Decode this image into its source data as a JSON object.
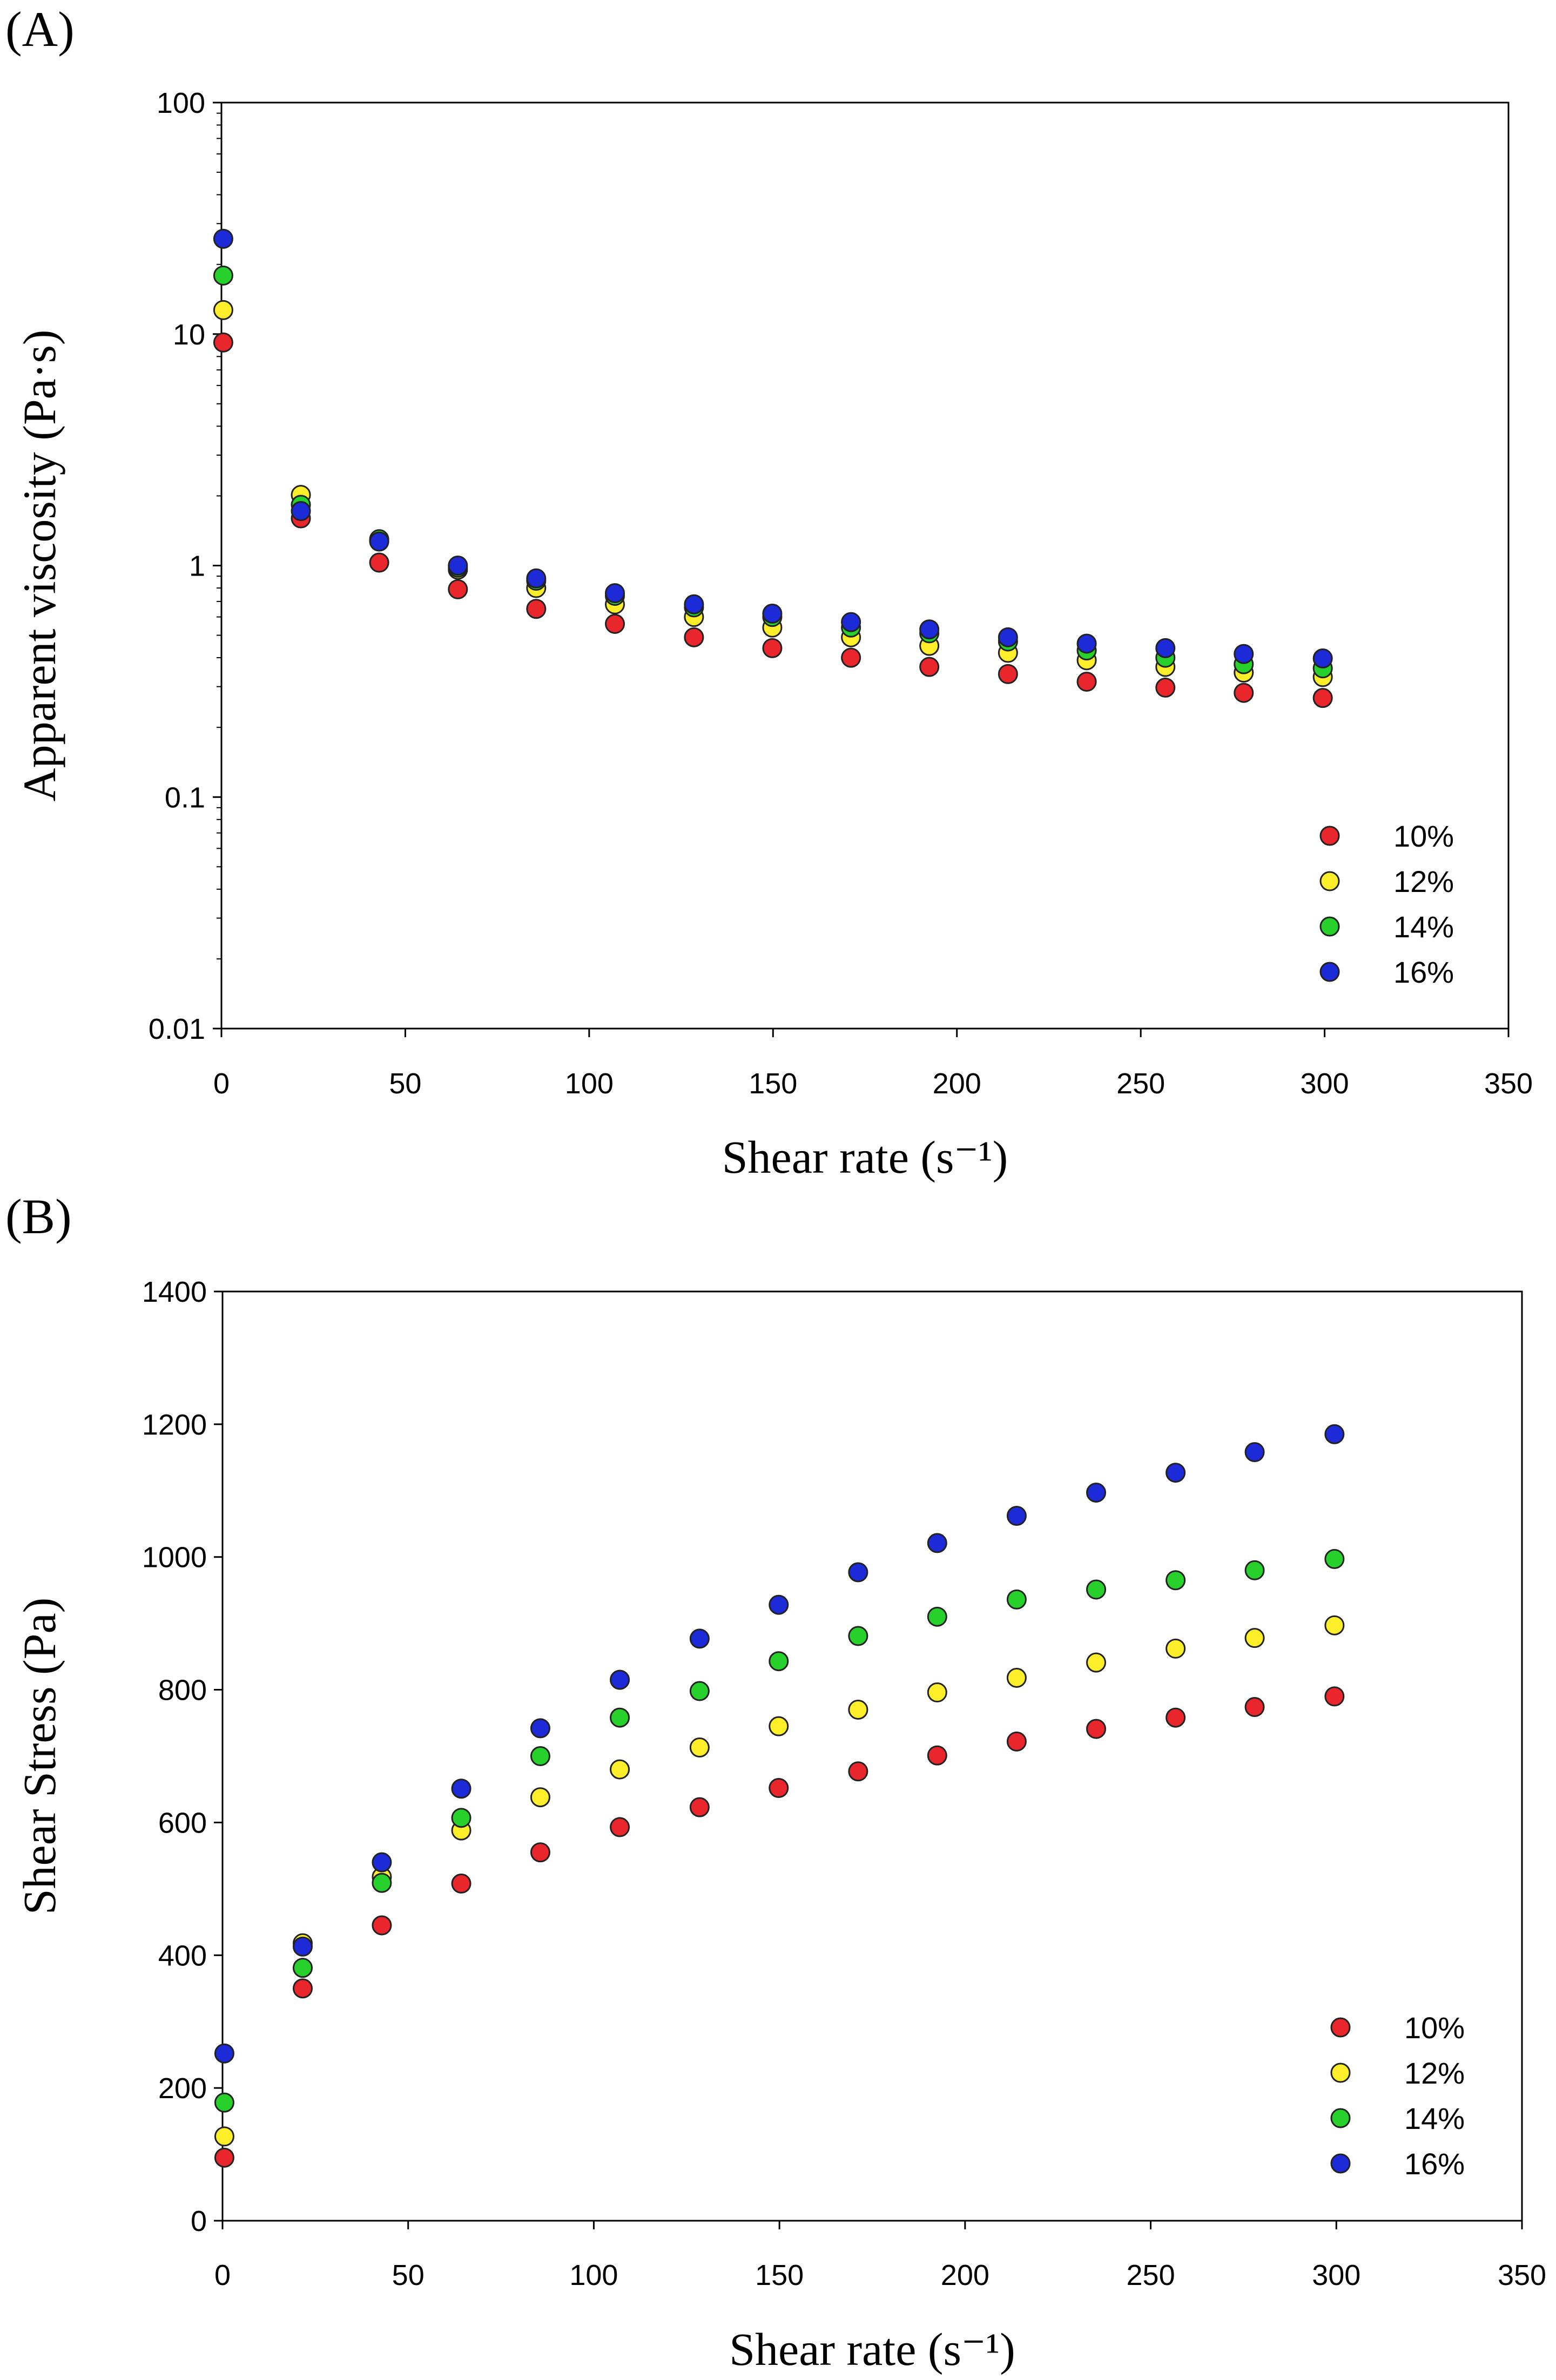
{
  "colors": {
    "10%": "#e8262b",
    "12%": "#ffee2a",
    "14%": "#27d02b",
    "16%": "#1c2ad8",
    "marker_outline": "#222222",
    "axis": "#000000",
    "background": "#ffffff"
  },
  "chart_data": [
    {
      "panel_label": "(A)",
      "type": "scatter",
      "title": "",
      "xlabel": "Shear rate (s⁻¹)",
      "ylabel": "Apparent viscosity (Pa·s)",
      "xscale": "linear",
      "yscale": "log",
      "xlim": [
        0,
        350
      ],
      "ylim": [
        0.01,
        100
      ],
      "xticks": [
        0,
        50,
        100,
        150,
        200,
        250,
        300,
        350
      ],
      "yticks": [
        0.01,
        0.1,
        1,
        10,
        100
      ],
      "xtick_labels": [
        "0",
        "50",
        "100",
        "150",
        "200",
        "250",
        "300",
        "350"
      ],
      "ytick_labels": [
        "0.01",
        "0.1",
        "1",
        "10",
        "100"
      ],
      "grid": false,
      "legend_position": "bottom-right",
      "x": [
        0.5,
        21.6,
        42.9,
        64.3,
        85.6,
        107,
        128.5,
        149.8,
        171.2,
        192.5,
        213.9,
        235.3,
        256.7,
        278,
        299.5
      ],
      "series": [
        {
          "name": "10%",
          "values": [
            9.2,
            1.6,
            1.03,
            0.79,
            0.65,
            0.56,
            0.49,
            0.44,
            0.4,
            0.365,
            0.34,
            0.315,
            0.297,
            0.282,
            0.268
          ]
        },
        {
          "name": "12%",
          "values": [
            12.7,
            2.02,
            1.28,
            0.96,
            0.8,
            0.68,
            0.6,
            0.54,
            0.49,
            0.45,
            0.42,
            0.39,
            0.365,
            0.345,
            0.33
          ]
        },
        {
          "name": "14%",
          "values": [
            17.9,
            1.83,
            1.3,
            0.98,
            0.86,
            0.74,
            0.66,
            0.6,
            0.54,
            0.51,
            0.47,
            0.43,
            0.4,
            0.375,
            0.36
          ]
        },
        {
          "name": "16%",
          "values": [
            25.8,
            1.72,
            1.27,
            1.0,
            0.88,
            0.76,
            0.68,
            0.62,
            0.57,
            0.53,
            0.49,
            0.46,
            0.44,
            0.415,
            0.397
          ]
        }
      ]
    },
    {
      "panel_label": "(B)",
      "type": "scatter",
      "title": "",
      "xlabel": "Shear rate (s⁻¹)",
      "ylabel": "Shear Stress (Pa)",
      "xscale": "linear",
      "yscale": "linear",
      "xlim": [
        0,
        350
      ],
      "ylim": [
        0,
        1400
      ],
      "xticks": [
        0,
        50,
        100,
        150,
        200,
        250,
        300,
        350
      ],
      "yticks": [
        0,
        200,
        400,
        600,
        800,
        1000,
        1200,
        1400
      ],
      "xtick_labels": [
        "0",
        "50",
        "100",
        "150",
        "200",
        "250",
        "300",
        "350"
      ],
      "ytick_labels": [
        "0",
        "200",
        "400",
        "600",
        "800",
        "1000",
        "1200",
        "1400"
      ],
      "grid": false,
      "legend_position": "bottom-right",
      "x": [
        0.5,
        21.6,
        42.9,
        64.3,
        85.6,
        107,
        128.5,
        149.8,
        171.2,
        192.5,
        213.9,
        235.3,
        256.7,
        278,
        299.5
      ],
      "series": [
        {
          "name": "10%",
          "values": [
            95,
            350,
            445,
            508,
            555,
            593,
            623,
            652,
            677,
            701,
            722,
            741,
            758,
            774,
            790
          ]
        },
        {
          "name": "12%",
          "values": [
            127,
            418,
            518,
            588,
            638,
            680,
            713,
            745,
            770,
            796,
            818,
            841,
            862,
            878,
            897
          ]
        },
        {
          "name": "14%",
          "values": [
            178,
            381,
            509,
            607,
            700,
            758,
            798,
            843,
            881,
            910,
            936,
            951,
            965,
            980,
            997
          ]
        },
        {
          "name": "16%",
          "values": [
            252,
            413,
            540,
            651,
            742,
            815,
            877,
            928,
            977,
            1021,
            1062,
            1097,
            1127,
            1158,
            1185
          ]
        }
      ]
    }
  ]
}
